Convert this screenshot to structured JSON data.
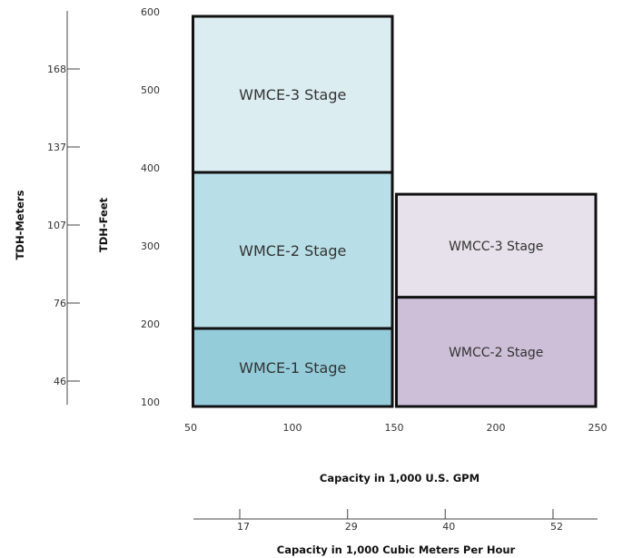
{
  "chart_data": {
    "type": "range-chart",
    "primary_x_axis": {
      "title": "Capacity in 1,000 U.S. GPM",
      "range": [
        50,
        250
      ],
      "ticks": [
        50,
        100,
        150,
        200,
        250
      ]
    },
    "secondary_x_axis": {
      "title": "Capacity in 1,000 Cubic Meters Per Hour",
      "ticks": [
        {
          "label": "17",
          "gpm": 75
        },
        {
          "label": "29",
          "gpm": 128
        },
        {
          "label": "40",
          "gpm": 176
        },
        {
          "label": "52",
          "gpm": 229
        }
      ]
    },
    "primary_y_axis": {
      "title": "TDH-Feet",
      "range": [
        100,
        600
      ],
      "ticks": [
        100,
        200,
        300,
        400,
        500,
        600
      ]
    },
    "secondary_y_axis": {
      "title": "TDH-Meters",
      "ticks": [
        {
          "label": "46",
          "feet": 150
        },
        {
          "label": "76",
          "feet": 250
        },
        {
          "label": "107",
          "feet": 350
        },
        {
          "label": "137",
          "feet": 450
        },
        {
          "label": "168",
          "feet": 550
        }
      ]
    },
    "regions": [
      {
        "name": "WMCE-1 Stage",
        "gpm": [
          52,
          150
        ],
        "feet": [
          100,
          200
        ],
        "color": "#94ccda"
      },
      {
        "name": "WMCE-2 Stage",
        "gpm": [
          52,
          150
        ],
        "feet": [
          200,
          400
        ],
        "color": "#b8dfe7"
      },
      {
        "name": "WMCE-3 Stage",
        "gpm": [
          52,
          150
        ],
        "feet": [
          400,
          600
        ],
        "color": "#dcedf2"
      },
      {
        "name": "WMCC-2 Stage",
        "gpm": [
          152,
          250
        ],
        "feet": [
          100,
          240
        ],
        "color": "#cdbfd8"
      },
      {
        "name": "WMCC-3 Stage",
        "gpm": [
          152,
          250
        ],
        "feet": [
          240,
          372
        ],
        "color": "#e6e1ea"
      }
    ]
  }
}
